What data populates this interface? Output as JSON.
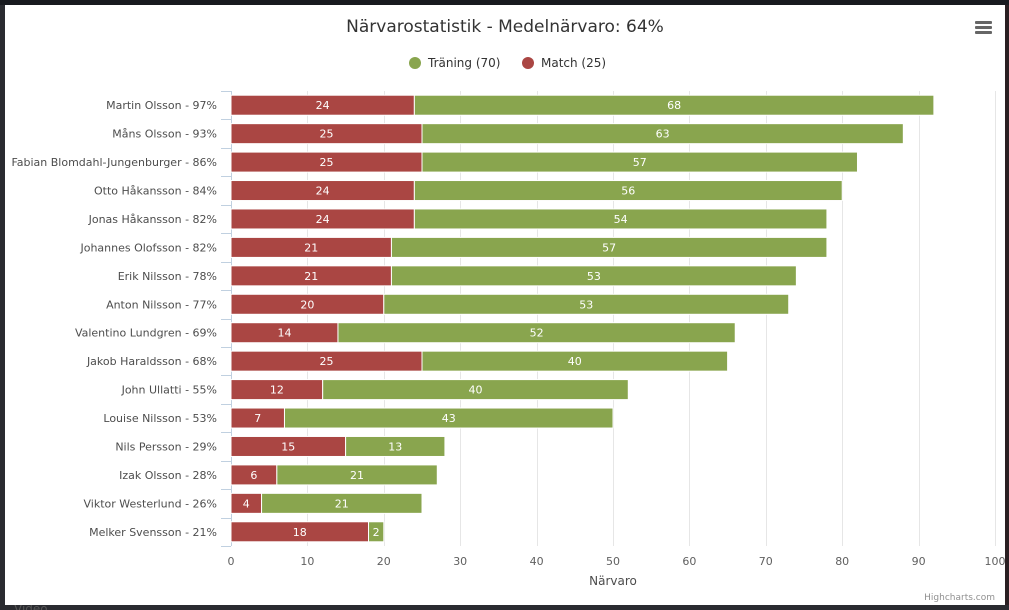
{
  "chart_data": {
    "type": "bar",
    "orientation": "horizontal",
    "stacked": true,
    "title": "Närvarostatistik - Medelnärvaro: 64%",
    "xlabel": "Närvaro",
    "ylabel": "",
    "xlim": [
      0,
      100
    ],
    "x_ticks": [
      "0",
      "10",
      "20",
      "30",
      "40",
      "50",
      "60",
      "70",
      "80",
      "90",
      "100"
    ],
    "grid": true,
    "legend_position": "top-center",
    "categories": [
      "Martin Olsson - 97%",
      "Måns Olsson - 93%",
      "Fabian Blomdahl-Jungenburger - 86%",
      "Otto Håkansson - 84%",
      "Jonas Håkansson - 82%",
      "Johannes Olofsson - 82%",
      "Erik Nilsson - 78%",
      "Anton Nilsson - 77%",
      "Valentino Lundgren - 69%",
      "Jakob Haraldsson - 68%",
      "John Ullatti - 55%",
      "Louise Nilsson - 53%",
      "Nils Persson - 29%",
      "Izak Olsson - 28%",
      "Viktor Westerlund - 26%",
      "Melker Svensson - 21%"
    ],
    "series": [
      {
        "name": "Match",
        "legend_label": "Match (25)",
        "color": "#aa4643",
        "values": [
          24,
          25,
          25,
          24,
          24,
          21,
          21,
          20,
          14,
          25,
          12,
          7,
          15,
          6,
          4,
          18
        ]
      },
      {
        "name": "Träning",
        "legend_label": "Träning (70)",
        "color": "#89a54e",
        "values": [
          68,
          63,
          57,
          56,
          54,
          57,
          53,
          53,
          52,
          40,
          40,
          43,
          13,
          21,
          21,
          2
        ]
      }
    ],
    "legend_order": [
      "Träning",
      "Match"
    ],
    "credits": "Highcharts.com"
  },
  "ui": {
    "menu_icon": "hamburger-menu-icon",
    "behind_text": "Video"
  }
}
